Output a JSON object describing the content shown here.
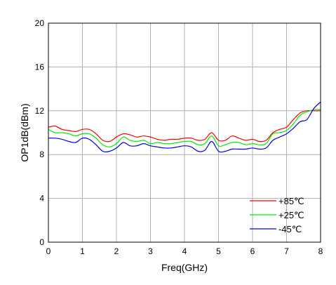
{
  "chart_data": {
    "type": "line",
    "title": "",
    "xlabel": "Freq(GHz)",
    "ylabel": "OP1dB(dBm)",
    "xlim": [
      0,
      8
    ],
    "ylim": [
      0,
      20
    ],
    "xticks": [
      0,
      1,
      2,
      3,
      4,
      5,
      6,
      7,
      8
    ],
    "yticks": [
      0,
      4,
      8,
      12,
      16,
      20
    ],
    "grid": true,
    "legend_position": "bottom-right",
    "series": [
      {
        "name": "+85℃",
        "color": "#ff0000",
        "x": [
          0.0,
          0.2,
          0.4,
          0.6,
          0.8,
          1.0,
          1.2,
          1.4,
          1.6,
          1.8,
          2.0,
          2.2,
          2.4,
          2.6,
          2.8,
          3.0,
          3.2,
          3.4,
          3.6,
          3.8,
          4.0,
          4.2,
          4.4,
          4.6,
          4.8,
          5.0,
          5.2,
          5.4,
          5.6,
          5.8,
          6.0,
          6.2,
          6.4,
          6.6,
          6.8,
          7.0,
          7.2,
          7.4,
          7.6,
          7.8,
          8.0
        ],
        "y": [
          10.5,
          10.6,
          10.3,
          10.2,
          10.1,
          10.3,
          10.3,
          9.9,
          9.3,
          9.2,
          9.6,
          9.9,
          9.8,
          9.6,
          9.7,
          9.6,
          9.4,
          9.3,
          9.4,
          9.4,
          9.5,
          9.5,
          9.3,
          9.4,
          10.0,
          9.3,
          9.3,
          9.7,
          9.5,
          9.3,
          9.4,
          9.2,
          9.3,
          10.0,
          10.3,
          10.5,
          11.2,
          11.8,
          12.0,
          12.0,
          12.0
        ]
      },
      {
        "name": "+25℃",
        "color": "#00ee00",
        "x": [
          0.0,
          0.2,
          0.4,
          0.6,
          0.8,
          1.0,
          1.2,
          1.4,
          1.6,
          1.8,
          2.0,
          2.2,
          2.4,
          2.6,
          2.8,
          3.0,
          3.2,
          3.4,
          3.6,
          3.8,
          4.0,
          4.2,
          4.4,
          4.6,
          4.8,
          5.0,
          5.2,
          5.4,
          5.6,
          5.8,
          6.0,
          6.2,
          6.4,
          6.6,
          6.8,
          7.0,
          7.2,
          7.4,
          7.6,
          7.8,
          8.0
        ],
        "y": [
          10.3,
          10.0,
          10.0,
          9.9,
          9.7,
          9.9,
          9.9,
          9.5,
          8.9,
          8.7,
          9.0,
          9.6,
          9.3,
          9.2,
          9.3,
          9.0,
          9.1,
          9.0,
          9.0,
          9.1,
          9.2,
          9.2,
          8.9,
          9.0,
          9.7,
          8.8,
          8.9,
          9.1,
          9.1,
          8.9,
          9.0,
          8.9,
          9.0,
          9.9,
          10.0,
          10.2,
          10.8,
          11.6,
          11.9,
          12.1,
          12.1
        ]
      },
      {
        "name": "-45℃",
        "color": "#0000ff",
        "x": [
          0.0,
          0.2,
          0.4,
          0.6,
          0.8,
          1.0,
          1.2,
          1.4,
          1.6,
          1.8,
          2.0,
          2.2,
          2.4,
          2.6,
          2.8,
          3.0,
          3.2,
          3.4,
          3.6,
          3.8,
          4.0,
          4.2,
          4.4,
          4.6,
          4.8,
          5.0,
          5.2,
          5.4,
          5.6,
          5.8,
          6.0,
          6.2,
          6.4,
          6.6,
          6.8,
          7.0,
          7.2,
          7.4,
          7.6,
          7.8,
          8.0
        ],
        "y": [
          9.5,
          9.5,
          9.4,
          9.2,
          9.1,
          9.5,
          9.4,
          8.9,
          8.3,
          8.3,
          8.6,
          9.1,
          8.8,
          8.8,
          9.0,
          8.8,
          8.7,
          8.6,
          8.6,
          8.7,
          8.8,
          8.7,
          8.3,
          8.4,
          9.2,
          8.3,
          8.3,
          8.5,
          8.5,
          8.5,
          8.6,
          8.5,
          8.6,
          9.3,
          9.6,
          9.9,
          10.4,
          11.0,
          11.2,
          12.2,
          12.8
        ]
      }
    ]
  }
}
